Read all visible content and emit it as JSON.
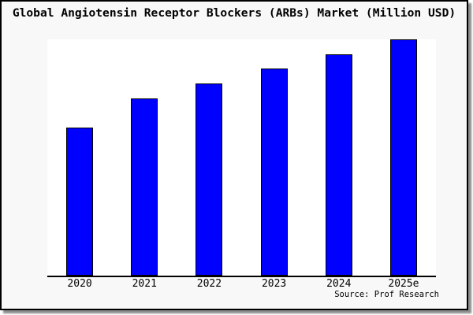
{
  "title": "Global Angiotensin Receptor Blockers (ARBs) Market (Million USD)",
  "source": "Source: Prof Research",
  "colors": {
    "figure_bg": "#f8f8f8",
    "plot_bg": "#ffffff",
    "frame": "#000000",
    "axis": "#000000",
    "bar_fill": "#0000ff",
    "bar_border": "#000000"
  },
  "chart_data": {
    "type": "bar",
    "title": "Global Angiotensin Receptor Blockers (ARBs) Market (Million USD)",
    "categories": [
      "2020",
      "2021",
      "2022",
      "2023",
      "2024",
      "2025e"
    ],
    "values": [
      62.7,
      75.0,
      81.3,
      87.7,
      93.7,
      100.0
    ],
    "values_note": "Y-axis has no ticks or labels; values are bar heights as percent of the tallest bar (2025e = 100)",
    "xlabel": "",
    "ylabel": "",
    "ylim": [
      0,
      100
    ],
    "grid": false,
    "legend": null,
    "source": "Source: Prof Research"
  }
}
